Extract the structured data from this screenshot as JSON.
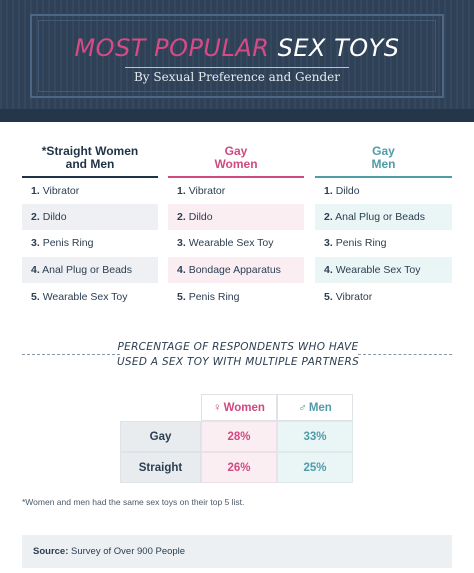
{
  "header": {
    "title_part1": "MOST POPULAR",
    "title_part2": "SEX TOYS",
    "subtitle": "By Sexual Preference and Gender"
  },
  "columns": [
    {
      "heading_line1": "*Straight Women",
      "heading_line2": "and Men",
      "items": [
        {
          "num": "1.",
          "label": "Vibrator"
        },
        {
          "num": "2.",
          "label": "Dildo"
        },
        {
          "num": "3.",
          "label": "Penis Ring"
        },
        {
          "num": "4.",
          "label": "Anal Plug or Beads"
        },
        {
          "num": "5.",
          "label": "Wearable Sex Toy"
        }
      ]
    },
    {
      "heading_line1": "Gay",
      "heading_line2": "Women",
      "items": [
        {
          "num": "1.",
          "label": "Vibrator"
        },
        {
          "num": "2.",
          "label": "Dildo"
        },
        {
          "num": "3.",
          "label": "Wearable Sex Toy"
        },
        {
          "num": "4.",
          "label": "Bondage Apparatus"
        },
        {
          "num": "5.",
          "label": "Penis Ring"
        }
      ]
    },
    {
      "heading_line1": "Gay",
      "heading_line2": "Men",
      "items": [
        {
          "num": "1.",
          "label": "Dildo"
        },
        {
          "num": "2.",
          "label": "Anal Plug or Beads"
        },
        {
          "num": "3.",
          "label": "Penis Ring"
        },
        {
          "num": "4.",
          "label": "Wearable Sex Toy"
        },
        {
          "num": "5.",
          "label": "Vibrator"
        }
      ]
    }
  ],
  "partners": {
    "title_line1": "PERCENTAGE OF RESPONDENTS WHO HAVE",
    "title_line2": "USED A SEX TOY WITH MULTIPLE PARTNERS",
    "women_symbol": "♀",
    "women_label": "Women",
    "men_symbol": "♂",
    "men_label": "Men",
    "rows": [
      {
        "label": "Gay",
        "women": "28%",
        "men": "33%"
      },
      {
        "label": "Straight",
        "women": "26%",
        "men": "25%"
      }
    ]
  },
  "footnote": "*Women and men had the same sex toys on their top 5 list.",
  "source": {
    "label": "Source:",
    "text": "Survey of Over 900 People"
  },
  "colors": {
    "header_bg": "#2e4157",
    "pink": "#d04a7f",
    "teal": "#4f9ca8",
    "navy": "#1f3346"
  }
}
